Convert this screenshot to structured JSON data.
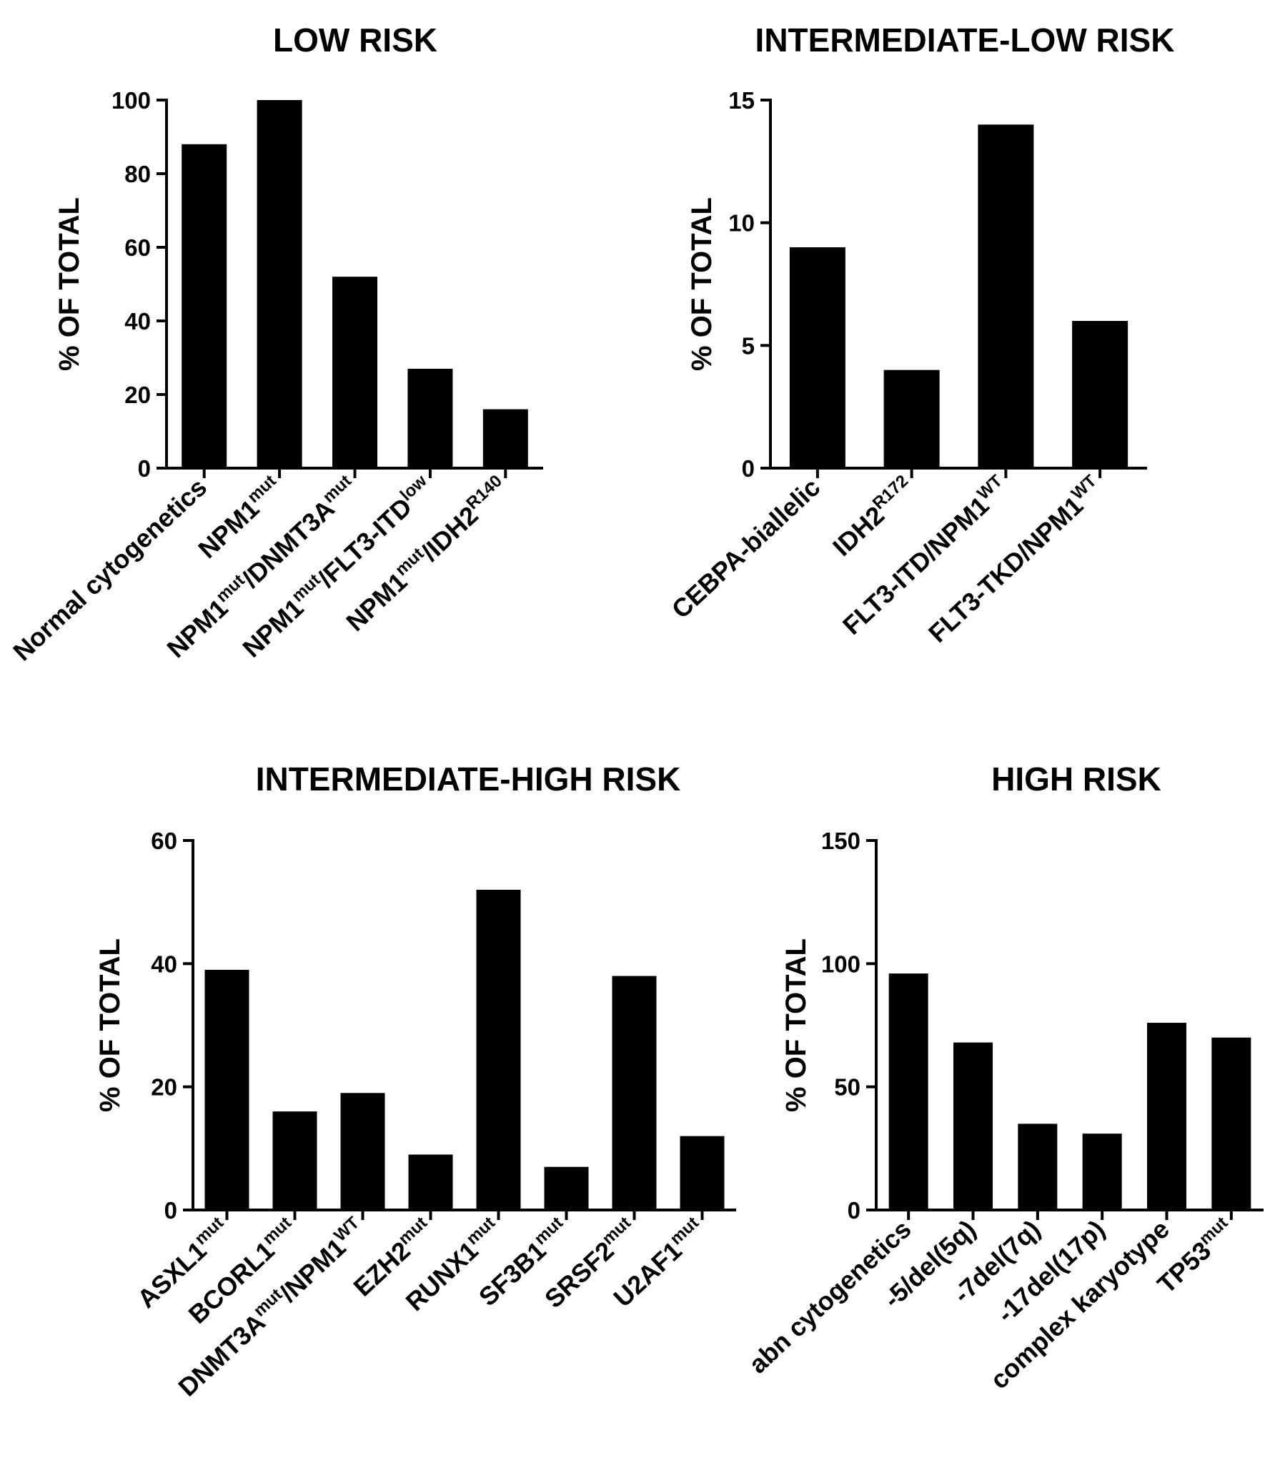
{
  "chart_data": [
    {
      "type": "bar",
      "title": "LOW RISK",
      "ylabel": "% OF TOTAL",
      "xlabel": "",
      "ylim": [
        0,
        100
      ],
      "yticks": [
        0,
        20,
        40,
        60,
        80,
        100
      ],
      "categories": [
        {
          "label": "Normal cytogenetics"
        },
        {
          "label": "NPM1",
          "sup": "mut"
        },
        {
          "label": "NPM1",
          "sup": "mut",
          "label2": "/DNMT3A",
          "sup2": "mut"
        },
        {
          "label": "NPM1",
          "sup": "mut",
          "label2": "/FLT3-ITD",
          "sup2": "low"
        },
        {
          "label": "NPM1",
          "sup": "mut",
          "label2": "/IDH2",
          "sup2": "R140"
        }
      ],
      "values": [
        88,
        100,
        52,
        27,
        16
      ]
    },
    {
      "type": "bar",
      "title": "INTERMEDIATE-LOW RISK",
      "ylabel": "% OF TOTAL",
      "xlabel": "",
      "ylim": [
        0,
        15
      ],
      "yticks": [
        0,
        5,
        10,
        15
      ],
      "categories": [
        {
          "label": "CEBPA-biallelic"
        },
        {
          "label": "IDH2",
          "sup": "R172"
        },
        {
          "label": "FLT3-ITD/NPM1",
          "sup": "WT"
        },
        {
          "label": "FLT3-TKD/NPM1",
          "sup": "WT"
        }
      ],
      "values": [
        9,
        4,
        14,
        6
      ]
    },
    {
      "type": "bar",
      "title": "INTERMEDIATE-HIGH RISK",
      "ylabel": "% OF TOTAL",
      "xlabel": "",
      "ylim": [
        0,
        60
      ],
      "yticks": [
        0,
        20,
        40,
        60
      ],
      "categories": [
        {
          "label": "ASXL1",
          "sup": "mut"
        },
        {
          "label": "BCORL1",
          "sup": "mut"
        },
        {
          "label": "DNMT3A",
          "sup": "mut",
          "label2": "/NPM1",
          "sup2": "WT"
        },
        {
          "label": "EZH2",
          "sup": "mut"
        },
        {
          "label": "RUNX1",
          "sup": "mut"
        },
        {
          "label": "SF3B1",
          "sup": "mut"
        },
        {
          "label": "SRSF2",
          "sup": "mut"
        },
        {
          "label": "U2AF1",
          "sup": "mut"
        }
      ],
      "values": [
        39,
        16,
        19,
        9,
        52,
        7,
        38,
        12
      ]
    },
    {
      "type": "bar",
      "title": "HIGH RISK",
      "ylabel": "% OF TOTAL",
      "xlabel": "",
      "ylim": [
        0,
        150
      ],
      "yticks": [
        0,
        50,
        100,
        150
      ],
      "categories": [
        {
          "label": "abn cytogenetics"
        },
        {
          "label": "-5/del(5q)"
        },
        {
          "label": "-7del(7q)"
        },
        {
          "label": "-17del(17p)"
        },
        {
          "label": "complex karyotype"
        },
        {
          "label": "TP53",
          "sup": "mut"
        }
      ],
      "values": [
        96,
        68,
        35,
        31,
        76,
        70
      ]
    }
  ]
}
